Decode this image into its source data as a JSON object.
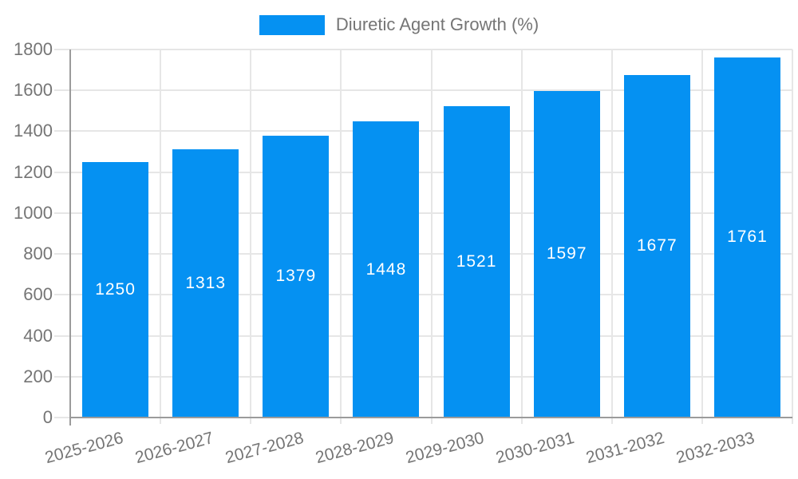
{
  "legend": {
    "label": "Diuretic Agent Growth (%)"
  },
  "colors": {
    "bar": "#0591f2",
    "bar_label": "#ffffff",
    "axis_text": "#757575",
    "gridline": "#e6e6e6",
    "axis_line": "#9b9b9b",
    "background": "#ffffff"
  },
  "chart_data": {
    "type": "bar",
    "title": "",
    "categories": [
      "2025-2026",
      "2026-2027",
      "2027-2028",
      "2028-2029",
      "2029-2030",
      "2030-2031",
      "2031-2032",
      "2032-2033"
    ],
    "series": [
      {
        "name": "Diuretic Agent Growth (%)",
        "values": [
          1250,
          1313,
          1379,
          1448,
          1521,
          1597,
          1677,
          1761
        ]
      }
    ],
    "xlabel": "",
    "ylabel": "",
    "ylim": [
      0,
      1800
    ],
    "ytick_step": 200,
    "yticks": [
      0,
      200,
      400,
      600,
      800,
      1000,
      1200,
      1400,
      1600,
      1800
    ],
    "grid": true,
    "bar_value_labels": true,
    "legend_position": "top-center",
    "x_tick_rotation_deg": -15
  }
}
